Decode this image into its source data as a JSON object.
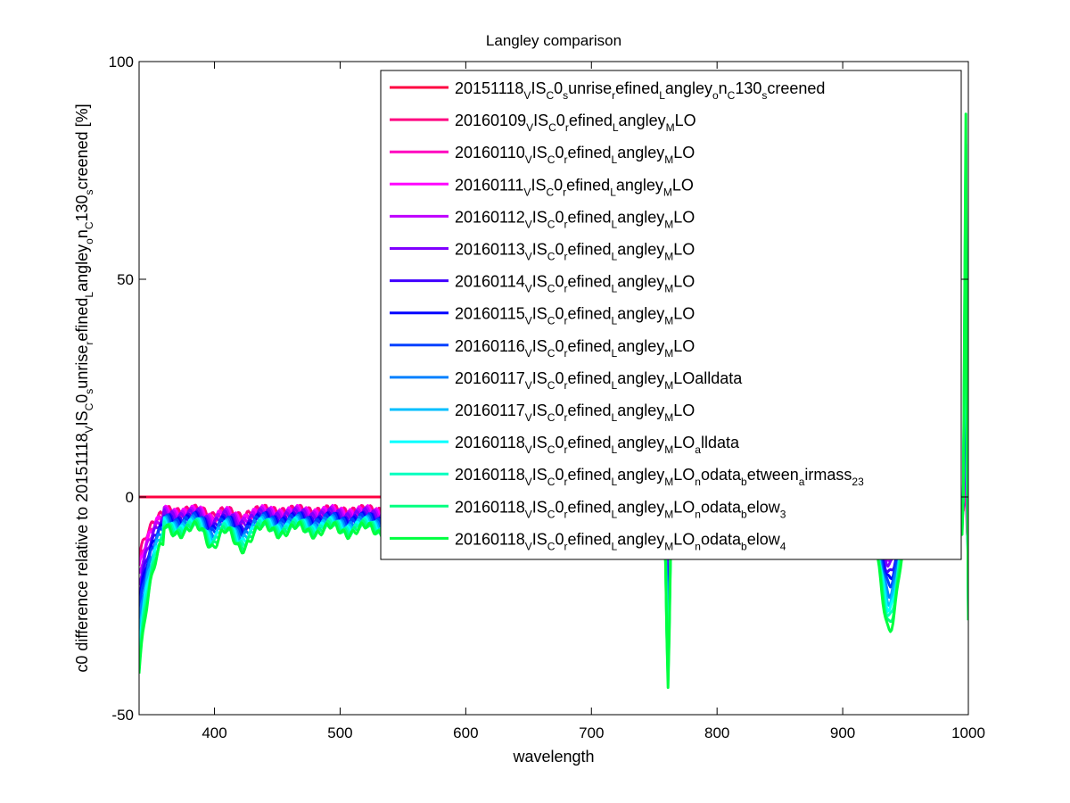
{
  "chart_data": {
    "type": "line",
    "title": "Langley comparison",
    "xlabel": "wavelength",
    "ylabel": "c0 difference relative to 20151118_VIS_C0_sunrise_refined_Langley_on_C130_screened [%]",
    "xlim": [
      340,
      1000
    ],
    "ylim": [
      -50,
      100
    ],
    "x_ticks": [
      400,
      500,
      600,
      700,
      800,
      900,
      1000
    ],
    "y_ticks": [
      -50,
      0,
      50,
      100
    ],
    "grid": false,
    "legend_position": "top-right",
    "x": [
      340,
      345,
      350,
      355,
      360,
      365,
      370,
      375,
      380,
      385,
      390,
      395,
      400,
      405,
      410,
      415,
      420,
      425,
      430,
      440,
      450,
      460,
      470,
      480,
      500,
      520,
      540,
      560,
      600,
      640,
      680,
      700,
      720,
      740,
      750,
      755,
      758,
      760,
      762,
      765,
      770,
      780,
      800,
      820,
      840,
      860,
      880,
      900,
      910,
      920,
      925,
      930,
      935,
      940,
      945,
      950,
      955,
      960,
      965,
      970,
      975,
      980,
      985,
      990,
      993,
      995,
      996,
      997,
      998,
      999,
      1000
    ],
    "series": [
      {
        "name": "20151118_VIS_C0_sunrise_refined_Langley_on_C130_screened",
        "color": "#ff0040",
        "offset": 0,
        "amp": 0
      },
      {
        "name": "20160109_VIS_C0_refined_Langley_MLO",
        "color": "#ff0080",
        "offset": -3.0,
        "amp": 0.32
      },
      {
        "name": "20160110_VIS_C0_refined_Langley_MLO",
        "color": "#ff00bf",
        "offset": -3.5,
        "amp": 0.38
      },
      {
        "name": "20160111_VIS_C0_refined_Langley_MLO",
        "color": "#ff00ff",
        "offset": -3.2,
        "amp": 0.4
      },
      {
        "name": "20160112_VIS_C0_refined_Langley_MLO",
        "color": "#bf00ff",
        "offset": -3.6,
        "amp": 0.45
      },
      {
        "name": "20160113_VIS_C0_refined_Langley_MLO",
        "color": "#8000ff",
        "offset": -4.0,
        "amp": 0.5
      },
      {
        "name": "20160114_VIS_C0_refined_Langley_MLO",
        "color": "#4000ff",
        "offset": -4.8,
        "amp": 0.55
      },
      {
        "name": "20160115_VIS_C0_refined_Langley_MLO",
        "color": "#0000ff",
        "offset": -5.0,
        "amp": 0.6
      },
      {
        "name": "20160116_VIS_C0_refined_Langley_MLO",
        "color": "#0040ff",
        "offset": -5.2,
        "amp": 0.65
      },
      {
        "name": "20160117_VIS_C0_refined_Langley_MLOalldata",
        "color": "#0080ff",
        "offset": -5.8,
        "amp": 0.72
      },
      {
        "name": "20160117_VIS_C0_refined_Langley_MLO",
        "color": "#00bfff",
        "offset": -6.2,
        "amp": 0.78
      },
      {
        "name": "20160118_VIS_C0_refined_Langley_MLO_alldata",
        "color": "#00ffff",
        "offset": -6.5,
        "amp": 0.84
      },
      {
        "name": "20160118_VIS_C0_refined_Langley_MLO_nodata_between_airmass_23",
        "color": "#00ffbf",
        "offset": -6.8,
        "amp": 0.9
      },
      {
        "name": "20160118_VIS_C0_refined_Langley_MLO_nodata_below_3",
        "color": "#00ff80",
        "offset": -7.2,
        "amp": 0.95
      },
      {
        "name": "20160118_VIS_C0_refined_Langley_MLO_nodata_below_4",
        "color": "#00ff40",
        "offset": -7.6,
        "amp": 1.0
      }
    ]
  },
  "legend": {
    "entries": [
      {
        "num": "20151118",
        "parts": [
          [
            "s",
            "V"
          ],
          [
            "t",
            "IS"
          ],
          [
            "s",
            "C"
          ],
          [
            "t",
            "0"
          ],
          [
            "s",
            "s"
          ],
          [
            "t",
            "unrise"
          ],
          [
            "s",
            "r"
          ],
          [
            "t",
            "efined"
          ],
          [
            "s",
            "L"
          ],
          [
            "t",
            "angley"
          ],
          [
            "s",
            "o"
          ],
          [
            "t",
            "n"
          ],
          [
            "s",
            "C"
          ],
          [
            "t",
            "130"
          ],
          [
            "s",
            "s"
          ],
          [
            "t",
            "creened"
          ]
        ]
      },
      {
        "num": "20160109",
        "parts": [
          [
            "s",
            "V"
          ],
          [
            "t",
            "IS"
          ],
          [
            "s",
            "C"
          ],
          [
            "t",
            "0"
          ],
          [
            "s",
            "r"
          ],
          [
            "t",
            "efined"
          ],
          [
            "s",
            "L"
          ],
          [
            "t",
            "angley"
          ],
          [
            "s",
            "M"
          ],
          [
            "t",
            "LO"
          ]
        ]
      },
      {
        "num": "20160110",
        "parts": [
          [
            "s",
            "V"
          ],
          [
            "t",
            "IS"
          ],
          [
            "s",
            "C"
          ],
          [
            "t",
            "0"
          ],
          [
            "s",
            "r"
          ],
          [
            "t",
            "efined"
          ],
          [
            "s",
            "L"
          ],
          [
            "t",
            "angley"
          ],
          [
            "s",
            "M"
          ],
          [
            "t",
            "LO"
          ]
        ]
      },
      {
        "num": "20160111",
        "parts": [
          [
            "s",
            "V"
          ],
          [
            "t",
            "IS"
          ],
          [
            "s",
            "C"
          ],
          [
            "t",
            "0"
          ],
          [
            "s",
            "r"
          ],
          [
            "t",
            "efined"
          ],
          [
            "s",
            "L"
          ],
          [
            "t",
            "angley"
          ],
          [
            "s",
            "M"
          ],
          [
            "t",
            "LO"
          ]
        ]
      },
      {
        "num": "20160112",
        "parts": [
          [
            "s",
            "V"
          ],
          [
            "t",
            "IS"
          ],
          [
            "s",
            "C"
          ],
          [
            "t",
            "0"
          ],
          [
            "s",
            "r"
          ],
          [
            "t",
            "efined"
          ],
          [
            "s",
            "L"
          ],
          [
            "t",
            "angley"
          ],
          [
            "s",
            "M"
          ],
          [
            "t",
            "LO"
          ]
        ]
      },
      {
        "num": "20160113",
        "parts": [
          [
            "s",
            "V"
          ],
          [
            "t",
            "IS"
          ],
          [
            "s",
            "C"
          ],
          [
            "t",
            "0"
          ],
          [
            "s",
            "r"
          ],
          [
            "t",
            "efined"
          ],
          [
            "s",
            "L"
          ],
          [
            "t",
            "angley"
          ],
          [
            "s",
            "M"
          ],
          [
            "t",
            "LO"
          ]
        ]
      },
      {
        "num": "20160114",
        "parts": [
          [
            "s",
            "V"
          ],
          [
            "t",
            "IS"
          ],
          [
            "s",
            "C"
          ],
          [
            "t",
            "0"
          ],
          [
            "s",
            "r"
          ],
          [
            "t",
            "efined"
          ],
          [
            "s",
            "L"
          ],
          [
            "t",
            "angley"
          ],
          [
            "s",
            "M"
          ],
          [
            "t",
            "LO"
          ]
        ]
      },
      {
        "num": "20160115",
        "parts": [
          [
            "s",
            "V"
          ],
          [
            "t",
            "IS"
          ],
          [
            "s",
            "C"
          ],
          [
            "t",
            "0"
          ],
          [
            "s",
            "r"
          ],
          [
            "t",
            "efined"
          ],
          [
            "s",
            "L"
          ],
          [
            "t",
            "angley"
          ],
          [
            "s",
            "M"
          ],
          [
            "t",
            "LO"
          ]
        ]
      },
      {
        "num": "20160116",
        "parts": [
          [
            "s",
            "V"
          ],
          [
            "t",
            "IS"
          ],
          [
            "s",
            "C"
          ],
          [
            "t",
            "0"
          ],
          [
            "s",
            "r"
          ],
          [
            "t",
            "efined"
          ],
          [
            "s",
            "L"
          ],
          [
            "t",
            "angley"
          ],
          [
            "s",
            "M"
          ],
          [
            "t",
            "LO"
          ]
        ]
      },
      {
        "num": "20160117",
        "parts": [
          [
            "s",
            "V"
          ],
          [
            "t",
            "IS"
          ],
          [
            "s",
            "C"
          ],
          [
            "t",
            "0"
          ],
          [
            "s",
            "r"
          ],
          [
            "t",
            "efined"
          ],
          [
            "s",
            "L"
          ],
          [
            "t",
            "angley"
          ],
          [
            "s",
            "M"
          ],
          [
            "t",
            "LOalldata"
          ]
        ]
      },
      {
        "num": "20160117",
        "parts": [
          [
            "s",
            "V"
          ],
          [
            "t",
            "IS"
          ],
          [
            "s",
            "C"
          ],
          [
            "t",
            "0"
          ],
          [
            "s",
            "r"
          ],
          [
            "t",
            "efined"
          ],
          [
            "s",
            "L"
          ],
          [
            "t",
            "angley"
          ],
          [
            "s",
            "M"
          ],
          [
            "t",
            "LO"
          ]
        ]
      },
      {
        "num": "20160118",
        "parts": [
          [
            "s",
            "V"
          ],
          [
            "t",
            "IS"
          ],
          [
            "s",
            "C"
          ],
          [
            "t",
            "0"
          ],
          [
            "s",
            "r"
          ],
          [
            "t",
            "efined"
          ],
          [
            "s",
            "L"
          ],
          [
            "t",
            "angley"
          ],
          [
            "s",
            "M"
          ],
          [
            "t",
            "LO"
          ],
          [
            "s",
            "a"
          ],
          [
            "t",
            "lldata"
          ]
        ]
      },
      {
        "num": "20160118",
        "parts": [
          [
            "s",
            "V"
          ],
          [
            "t",
            "IS"
          ],
          [
            "s",
            "C"
          ],
          [
            "t",
            "0"
          ],
          [
            "s",
            "r"
          ],
          [
            "t",
            "efined"
          ],
          [
            "s",
            "L"
          ],
          [
            "t",
            "angley"
          ],
          [
            "s",
            "M"
          ],
          [
            "t",
            "LO"
          ],
          [
            "s",
            "n"
          ],
          [
            "t",
            "odata"
          ],
          [
            "s",
            "b"
          ],
          [
            "t",
            "etween"
          ],
          [
            "s",
            "a"
          ],
          [
            "t",
            "irmass"
          ],
          [
            "s",
            "23"
          ]
        ]
      },
      {
        "num": "20160118",
        "parts": [
          [
            "s",
            "V"
          ],
          [
            "t",
            "IS"
          ],
          [
            "s",
            "C"
          ],
          [
            "t",
            "0"
          ],
          [
            "s",
            "r"
          ],
          [
            "t",
            "efined"
          ],
          [
            "s",
            "L"
          ],
          [
            "t",
            "angley"
          ],
          [
            "s",
            "M"
          ],
          [
            "t",
            "LO"
          ],
          [
            "s",
            "n"
          ],
          [
            "t",
            "odata"
          ],
          [
            "s",
            "b"
          ],
          [
            "t",
            "elow"
          ],
          [
            "s",
            "3"
          ]
        ]
      },
      {
        "num": "20160118",
        "parts": [
          [
            "s",
            "V"
          ],
          [
            "t",
            "IS"
          ],
          [
            "s",
            "C"
          ],
          [
            "t",
            "0"
          ],
          [
            "s",
            "r"
          ],
          [
            "t",
            "efined"
          ],
          [
            "s",
            "L"
          ],
          [
            "t",
            "angley"
          ],
          [
            "s",
            "M"
          ],
          [
            "t",
            "LO"
          ],
          [
            "s",
            "n"
          ],
          [
            "t",
            "odata"
          ],
          [
            "s",
            "b"
          ],
          [
            "t",
            "elow"
          ],
          [
            "s",
            "4"
          ]
        ]
      }
    ]
  },
  "ylabel_display": {
    "parts": [
      [
        "t",
        "c0 difference relative to 20151118"
      ],
      [
        "s",
        "V"
      ],
      [
        "t",
        "IS"
      ],
      [
        "s",
        "C"
      ],
      [
        "t",
        "0"
      ],
      [
        "s",
        "s"
      ],
      [
        "t",
        "unrise"
      ],
      [
        "s",
        "r"
      ],
      [
        "t",
        "efined"
      ],
      [
        "s",
        "L"
      ],
      [
        "t",
        "angley"
      ],
      [
        "s",
        "o"
      ],
      [
        "t",
        "n"
      ],
      [
        "s",
        "C"
      ],
      [
        "t",
        "130"
      ],
      [
        "s",
        "s"
      ],
      [
        "t",
        "creened [%]"
      ]
    ]
  }
}
